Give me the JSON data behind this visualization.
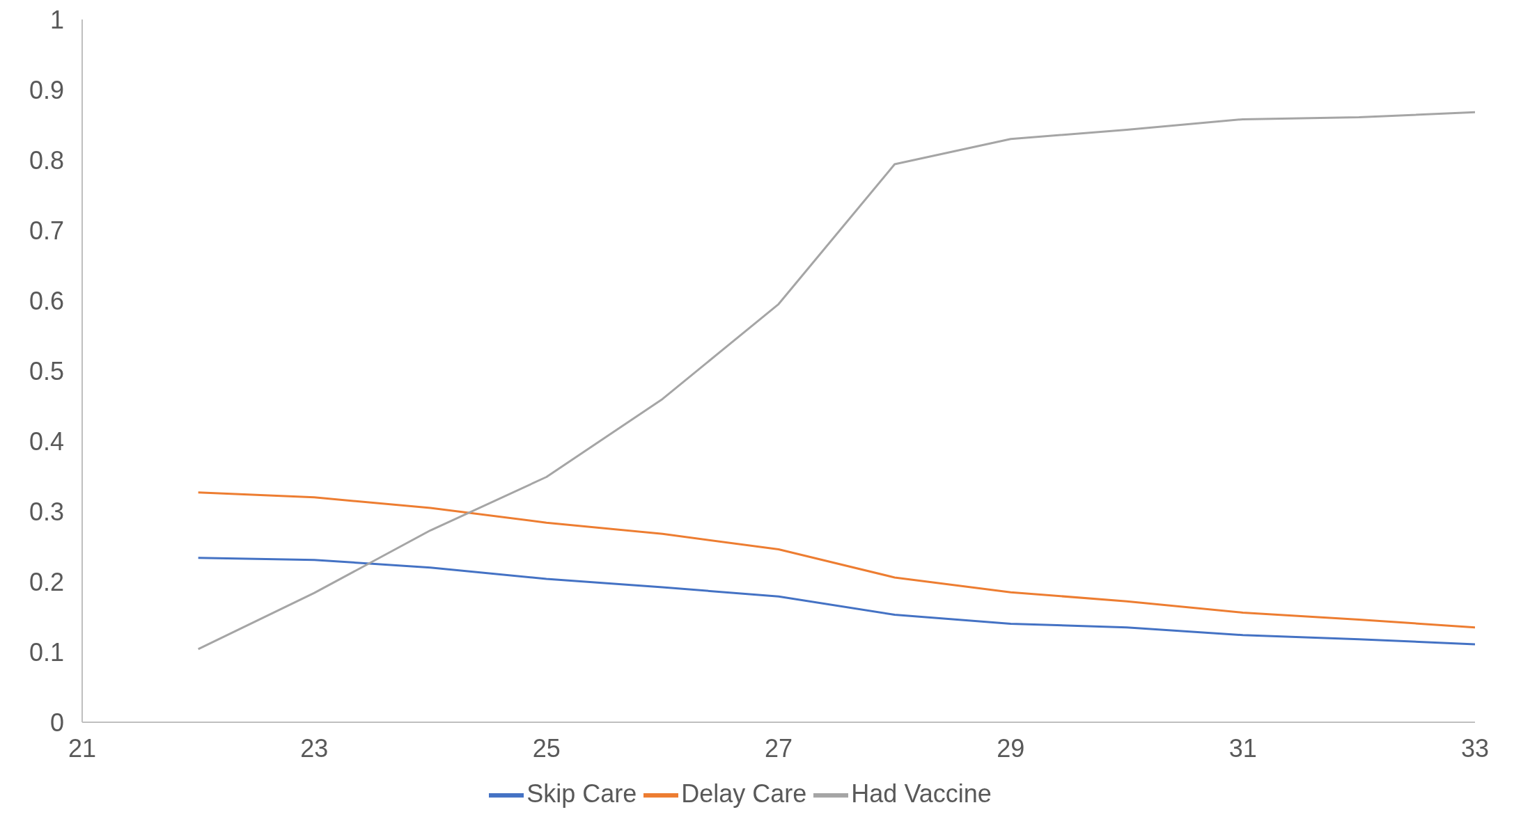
{
  "chart_data": {
    "type": "line",
    "x": [
      22,
      23,
      24,
      25,
      26,
      27,
      28,
      29,
      30,
      31,
      32,
      33
    ],
    "series": [
      {
        "name": "Skip Care",
        "color": "#4472c4",
        "values": [
          0.234,
          0.231,
          0.22,
          0.204,
          0.192,
          0.179,
          0.153,
          0.14,
          0.135,
          0.124,
          0.118,
          0.111
        ]
      },
      {
        "name": "Delay Care",
        "color": "#ed7d31",
        "values": [
          0.327,
          0.32,
          0.305,
          0.284,
          0.268,
          0.246,
          0.206,
          0.185,
          0.172,
          0.156,
          0.146,
          0.135
        ]
      },
      {
        "name": "Had Vaccine",
        "color": "#a5a5a5",
        "values": [
          0.104,
          0.184,
          0.273,
          0.349,
          0.46,
          0.595,
          0.794,
          0.83,
          0.843,
          0.858,
          0.861,
          0.868
        ]
      }
    ],
    "xlim": [
      21,
      33
    ],
    "xticks": [
      21,
      23,
      25,
      27,
      29,
      31,
      33
    ],
    "ylim": [
      0,
      1
    ],
    "yticks": [
      0,
      0.1,
      0.2,
      0.3,
      0.4,
      0.5,
      0.6,
      0.7,
      0.8,
      0.9,
      1
    ],
    "grid": false,
    "legend": "bottom",
    "marker": "none",
    "line_style": "solid"
  }
}
